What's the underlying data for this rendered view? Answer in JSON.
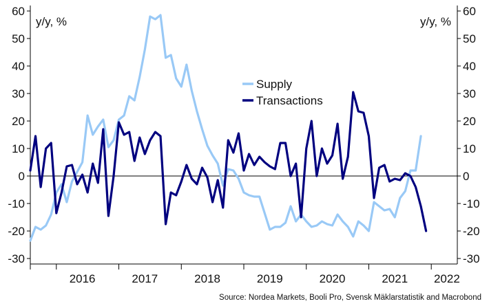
{
  "chart_data": {
    "type": "line",
    "left_unit": "y/y, %",
    "right_unit": "y/y, %",
    "ylim": [
      -32,
      62
    ],
    "yticks": [
      -30,
      -20,
      -10,
      0,
      10,
      20,
      30,
      40,
      50,
      60
    ],
    "x_start": "2015-08",
    "x_end": "2022-06",
    "year_labels": [
      {
        "label": "2016",
        "x": "2016-06"
      },
      {
        "label": "2017",
        "x": "2017-06"
      },
      {
        "label": "2018",
        "x": "2018-06"
      },
      {
        "label": "2019",
        "x": "2019-06"
      },
      {
        "label": "2020",
        "x": "2020-06"
      },
      {
        "label": "2021",
        "x": "2021-06"
      },
      {
        "label": "2022",
        "x": "2022-04"
      }
    ],
    "year_dividers": [
      "2016-01",
      "2017-01",
      "2018-01",
      "2019-01",
      "2020-01",
      "2021-01",
      "2022-01"
    ],
    "legend": {
      "position": "center"
    },
    "source": "Source: Nordea Markets, Booli Pro, Svensk Mäklarstatistik and Macrobond",
    "series": [
      {
        "name": "Supply",
        "color": "#99C9F6",
        "x_start": "2015-08",
        "values": [
          -23.5,
          -18.5,
          -19.5,
          -18,
          -14,
          -6,
          -3,
          -9.5,
          -2,
          1.5,
          5,
          22,
          15,
          18,
          20.5,
          10.5,
          13,
          20.5,
          22,
          29,
          27.5,
          36,
          46,
          58,
          57,
          58.5,
          43,
          44,
          35.5,
          32.5,
          40.5,
          31,
          23.5,
          17,
          11,
          7.5,
          4.5,
          -3.5,
          2.5,
          2,
          -1,
          -6,
          -7,
          -7.5,
          -7.5,
          -13.5,
          -19.5,
          -18.5,
          -18.5,
          -17,
          -11,
          -16.5,
          -14,
          -16.5,
          -18.5,
          -18,
          -16.5,
          -17.5,
          -18,
          -14,
          -16.5,
          -18.5,
          -22,
          -16.5,
          -18,
          -20,
          -9.5,
          -11,
          -12.5,
          -12,
          -15,
          -8,
          -5.5,
          2,
          2,
          14.5
        ]
      },
      {
        "name": "Transactions",
        "color": "#00007F",
        "x_start": "2015-08",
        "values": [
          2,
          14.5,
          -4,
          10,
          12,
          -13.5,
          -6,
          3.5,
          4,
          -3,
          0.5,
          -6,
          4.5,
          -2.5,
          17,
          -14.5,
          0,
          19.5,
          15,
          16,
          5.5,
          14,
          8,
          13,
          16,
          14.5,
          -17.5,
          -6,
          -7,
          -2,
          4,
          -1,
          -3,
          3,
          -0.5,
          -9.5,
          -1.5,
          -11.5,
          13,
          8.5,
          15.5,
          2,
          8,
          4,
          7,
          5,
          3.5,
          2.5,
          12,
          12,
          0,
          4.5,
          -15,
          10,
          20,
          0,
          10,
          4.5,
          7.5,
          19,
          -1,
          7,
          30.5,
          23.5,
          23,
          14.5,
          -8,
          3,
          4,
          -2,
          -1,
          -1.5,
          1,
          0,
          -4,
          -11,
          -20
        ]
      }
    ]
  }
}
